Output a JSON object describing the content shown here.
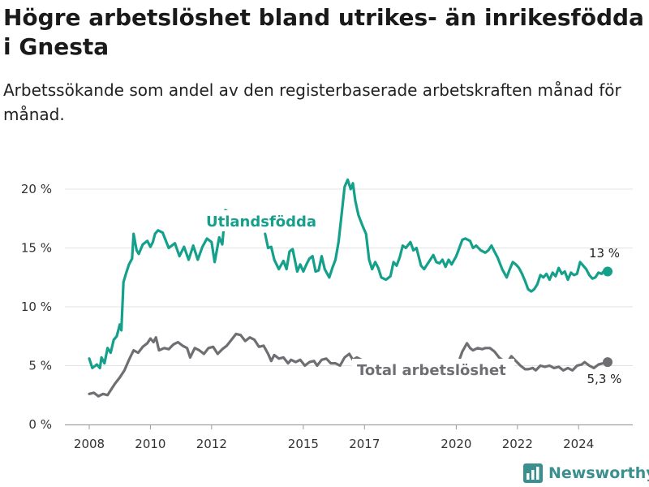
{
  "title": "Högre arbetslöshet bland utrikes- än inrikesfödda i Gnesta",
  "subtitle": "Arbetssökande som andel av den registerbaserade arbetskraften månad för månad.",
  "brand": {
    "name": "Newsworthy",
    "color": "#3a8f8f"
  },
  "chart_data": {
    "type": "line",
    "ylim": [
      0,
      20
    ],
    "xlim": [
      2007.5,
      2025.8
    ],
    "y_ticks": [
      {
        "value": 0,
        "label": "0 %"
      },
      {
        "value": 5,
        "label": "5 %"
      },
      {
        "value": 10,
        "label": "10 %"
      },
      {
        "value": 15,
        "label": "15 %"
      },
      {
        "value": 20,
        "label": "20 %"
      }
    ],
    "x_ticks": [
      {
        "value": 2008,
        "label": "2008"
      },
      {
        "value": 2010,
        "label": "2010"
      },
      {
        "value": 2012,
        "label": "2012"
      },
      {
        "value": 2015,
        "label": "2015"
      },
      {
        "value": 2017,
        "label": "2017"
      },
      {
        "value": 2020,
        "label": "2020"
      },
      {
        "value": 2022,
        "label": "2022"
      },
      {
        "value": 2024,
        "label": "2024"
      }
    ],
    "grid": true,
    "series": [
      {
        "name": "Utlandsfödda",
        "color": "#15a08c",
        "end_label": "13 %",
        "segments": [
          [
            [
              2008.0,
              5.6
            ],
            [
              2008.1,
              4.8
            ],
            [
              2008.25,
              5.1
            ],
            [
              2008.35,
              4.8
            ],
            [
              2008.4,
              5.7
            ],
            [
              2008.5,
              5.2
            ],
            [
              2008.6,
              6.5
            ],
            [
              2008.7,
              6.1
            ],
            [
              2008.8,
              7.2
            ],
            [
              2008.9,
              7.5
            ],
            [
              2009.0,
              8.5
            ],
            [
              2009.05,
              8.0
            ],
            [
              2009.12,
              12.1
            ],
            [
              2009.2,
              12.8
            ],
            [
              2009.3,
              13.6
            ],
            [
              2009.4,
              14.1
            ],
            [
              2009.45,
              16.2
            ],
            [
              2009.55,
              14.8
            ],
            [
              2009.62,
              14.5
            ],
            [
              2009.75,
              15.3
            ],
            [
              2009.9,
              15.6
            ],
            [
              2010.0,
              15.1
            ],
            [
              2010.08,
              15.5
            ],
            [
              2010.15,
              16.2
            ],
            [
              2010.25,
              16.5
            ],
            [
              2010.4,
              16.3
            ],
            [
              2010.6,
              15.0
            ],
            [
              2010.8,
              15.4
            ],
            [
              2010.95,
              14.3
            ],
            [
              2011.1,
              15.1
            ],
            [
              2011.25,
              14.0
            ],
            [
              2011.4,
              15.2
            ],
            [
              2011.55,
              14.0
            ],
            [
              2011.7,
              15.1
            ],
            [
              2011.85,
              15.8
            ],
            [
              2012.0,
              15.5
            ],
            [
              2012.1,
              13.8
            ],
            [
              2012.25,
              15.9
            ],
            [
              2012.35,
              15.3
            ],
            [
              2012.45,
              18.2
            ],
            [
              2012.6,
              18.0
            ],
            [
              2012.75,
              18.1
            ]
          ],
          [
            [
              2013.75,
              16.2
            ],
            [
              2013.85,
              15.0
            ],
            [
              2013.95,
              15.1
            ],
            [
              2014.05,
              14.0
            ],
            [
              2014.2,
              13.2
            ],
            [
              2014.35,
              13.9
            ],
            [
              2014.45,
              13.2
            ],
            [
              2014.55,
              14.7
            ],
            [
              2014.65,
              14.9
            ],
            [
              2014.8,
              13.0
            ],
            [
              2014.9,
              13.6
            ],
            [
              2015.0,
              13.0
            ],
            [
              2015.1,
              13.6
            ],
            [
              2015.2,
              14.1
            ],
            [
              2015.3,
              14.3
            ],
            [
              2015.4,
              13.0
            ],
            [
              2015.5,
              13.1
            ],
            [
              2015.6,
              14.3
            ],
            [
              2015.7,
              13.2
            ],
            [
              2015.85,
              12.5
            ],
            [
              2015.95,
              13.3
            ],
            [
              2016.05,
              14.0
            ],
            [
              2016.15,
              15.5
            ],
            [
              2016.25,
              17.8
            ],
            [
              2016.35,
              20.2
            ],
            [
              2016.45,
              20.8
            ],
            [
              2016.55,
              20.0
            ],
            [
              2016.62,
              20.5
            ],
            [
              2016.7,
              19.0
            ],
            [
              2016.8,
              17.8
            ],
            [
              2016.95,
              16.8
            ],
            [
              2017.05,
              16.2
            ],
            [
              2017.15,
              14.0
            ],
            [
              2017.25,
              13.2
            ],
            [
              2017.35,
              13.8
            ],
            [
              2017.45,
              13.3
            ],
            [
              2017.55,
              12.5
            ],
            [
              2017.7,
              12.3
            ],
            [
              2017.85,
              12.6
            ],
            [
              2017.95,
              13.8
            ],
            [
              2018.05,
              13.5
            ],
            [
              2018.15,
              14.2
            ],
            [
              2018.25,
              15.2
            ],
            [
              2018.35,
              15.0
            ],
            [
              2018.5,
              15.5
            ],
            [
              2018.6,
              14.8
            ],
            [
              2018.7,
              15.0
            ],
            [
              2018.85,
              13.5
            ],
            [
              2018.95,
              13.2
            ],
            [
              2019.1,
              13.8
            ],
            [
              2019.25,
              14.4
            ],
            [
              2019.35,
              13.8
            ],
            [
              2019.45,
              13.7
            ],
            [
              2019.55,
              14.0
            ],
            [
              2019.65,
              13.4
            ],
            [
              2019.75,
              14.0
            ],
            [
              2019.85,
              13.6
            ],
            [
              2020.0,
              14.3
            ],
            [
              2020.1,
              15.0
            ],
            [
              2020.2,
              15.7
            ],
            [
              2020.3,
              15.8
            ],
            [
              2020.45,
              15.6
            ],
            [
              2020.55,
              15.0
            ],
            [
              2020.65,
              15.2
            ],
            [
              2020.8,
              14.8
            ],
            [
              2020.95,
              14.6
            ],
            [
              2021.05,
              14.8
            ],
            [
              2021.15,
              15.2
            ],
            [
              2021.25,
              14.7
            ],
            [
              2021.35,
              14.2
            ],
            [
              2021.5,
              13.2
            ],
            [
              2021.65,
              12.5
            ],
            [
              2021.75,
              13.2
            ],
            [
              2021.85,
              13.8
            ],
            [
              2021.95,
              13.6
            ],
            [
              2022.05,
              13.3
            ],
            [
              2022.15,
              12.8
            ],
            [
              2022.25,
              12.2
            ],
            [
              2022.35,
              11.5
            ],
            [
              2022.45,
              11.3
            ],
            [
              2022.55,
              11.5
            ],
            [
              2022.65,
              11.9
            ],
            [
              2022.75,
              12.7
            ],
            [
              2022.85,
              12.5
            ],
            [
              2022.95,
              12.8
            ],
            [
              2023.05,
              12.3
            ],
            [
              2023.15,
              12.9
            ],
            [
              2023.25,
              12.6
            ],
            [
              2023.35,
              13.3
            ],
            [
              2023.45,
              12.8
            ],
            [
              2023.55,
              13.0
            ],
            [
              2023.65,
              12.3
            ],
            [
              2023.75,
              12.9
            ],
            [
              2023.85,
              12.7
            ],
            [
              2023.95,
              12.8
            ],
            [
              2024.05,
              13.8
            ],
            [
              2024.15,
              13.5
            ],
            [
              2024.25,
              13.2
            ],
            [
              2024.35,
              12.7
            ],
            [
              2024.45,
              12.4
            ],
            [
              2024.55,
              12.5
            ],
            [
              2024.65,
              12.9
            ],
            [
              2024.75,
              12.8
            ],
            [
              2024.85,
              13.1
            ],
            [
              2024.95,
              13.0
            ]
          ]
        ]
      },
      {
        "name": "Total arbetslöshet",
        "color": "#6f6f73",
        "end_label": "5,3 %",
        "segments": [
          [
            [
              2008.0,
              2.6
            ],
            [
              2008.15,
              2.7
            ],
            [
              2008.3,
              2.4
            ],
            [
              2008.45,
              2.6
            ],
            [
              2008.6,
              2.5
            ],
            [
              2008.7,
              2.9
            ],
            [
              2008.85,
              3.5
            ],
            [
              2009.0,
              4.0
            ],
            [
              2009.15,
              4.6
            ],
            [
              2009.3,
              5.5
            ],
            [
              2009.45,
              6.3
            ],
            [
              2009.6,
              6.1
            ],
            [
              2009.75,
              6.6
            ],
            [
              2009.9,
              6.9
            ],
            [
              2010.0,
              7.3
            ],
            [
              2010.1,
              7.0
            ],
            [
              2010.18,
              7.4
            ],
            [
              2010.28,
              6.3
            ],
            [
              2010.45,
              6.5
            ],
            [
              2010.6,
              6.4
            ],
            [
              2010.75,
              6.8
            ],
            [
              2010.9,
              7.0
            ],
            [
              2011.05,
              6.7
            ],
            [
              2011.2,
              6.5
            ],
            [
              2011.3,
              5.7
            ],
            [
              2011.45,
              6.5
            ],
            [
              2011.6,
              6.3
            ],
            [
              2011.75,
              6.0
            ],
            [
              2011.9,
              6.5
            ],
            [
              2012.05,
              6.6
            ],
            [
              2012.2,
              6.0
            ],
            [
              2012.35,
              6.4
            ],
            [
              2012.5,
              6.7
            ],
            [
              2012.65,
              7.2
            ],
            [
              2012.8,
              7.7
            ],
            [
              2012.95,
              7.6
            ],
            [
              2013.1,
              7.1
            ],
            [
              2013.25,
              7.4
            ],
            [
              2013.4,
              7.2
            ],
            [
              2013.55,
              6.6
            ],
            [
              2013.7,
              6.7
            ],
            [
              2013.85,
              6.0
            ],
            [
              2013.95,
              5.4
            ],
            [
              2014.05,
              5.9
            ],
            [
              2014.2,
              5.6
            ],
            [
              2014.35,
              5.7
            ],
            [
              2014.5,
              5.2
            ],
            [
              2014.6,
              5.5
            ],
            [
              2014.75,
              5.3
            ],
            [
              2014.9,
              5.5
            ],
            [
              2015.05,
              5.0
            ],
            [
              2015.2,
              5.3
            ],
            [
              2015.35,
              5.4
            ],
            [
              2015.45,
              5.0
            ],
            [
              2015.6,
              5.5
            ],
            [
              2015.75,
              5.6
            ],
            [
              2015.9,
              5.2
            ],
            [
              2016.05,
              5.2
            ],
            [
              2016.2,
              5.0
            ],
            [
              2016.35,
              5.7
            ],
            [
              2016.5,
              6.0
            ],
            [
              2016.62,
              5.5
            ],
            [
              2016.75,
              5.7
            ],
            [
              2016.9,
              5.5
            ],
            [
              2017.05,
              5.3
            ]
          ],
          [
            [
              2020.1,
              5.5
            ],
            [
              2020.2,
              6.2
            ],
            [
              2020.35,
              6.9
            ],
            [
              2020.45,
              6.5
            ],
            [
              2020.55,
              6.3
            ],
            [
              2020.7,
              6.5
            ],
            [
              2020.85,
              6.4
            ],
            [
              2020.95,
              6.5
            ],
            [
              2021.1,
              6.5
            ],
            [
              2021.25,
              6.2
            ],
            [
              2021.4,
              5.7
            ],
            [
              2021.55,
              5.4
            ],
            [
              2021.7,
              5.4
            ],
            [
              2021.8,
              5.8
            ],
            [
              2021.95,
              5.4
            ],
            [
              2022.1,
              5.0
            ],
            [
              2022.25,
              4.7
            ],
            [
              2022.35,
              4.7
            ],
            [
              2022.5,
              4.8
            ],
            [
              2022.6,
              4.6
            ],
            [
              2022.75,
              5.0
            ],
            [
              2022.9,
              4.9
            ],
            [
              2023.05,
              5.0
            ],
            [
              2023.2,
              4.8
            ],
            [
              2023.35,
              4.9
            ],
            [
              2023.5,
              4.6
            ],
            [
              2023.65,
              4.8
            ],
            [
              2023.8,
              4.6
            ],
            [
              2023.95,
              5.0
            ],
            [
              2024.1,
              5.1
            ],
            [
              2024.2,
              5.3
            ],
            [
              2024.35,
              5.0
            ],
            [
              2024.5,
              4.8
            ],
            [
              2024.65,
              5.1
            ],
            [
              2024.8,
              5.2
            ],
            [
              2024.95,
              5.3
            ]
          ]
        ]
      }
    ]
  }
}
